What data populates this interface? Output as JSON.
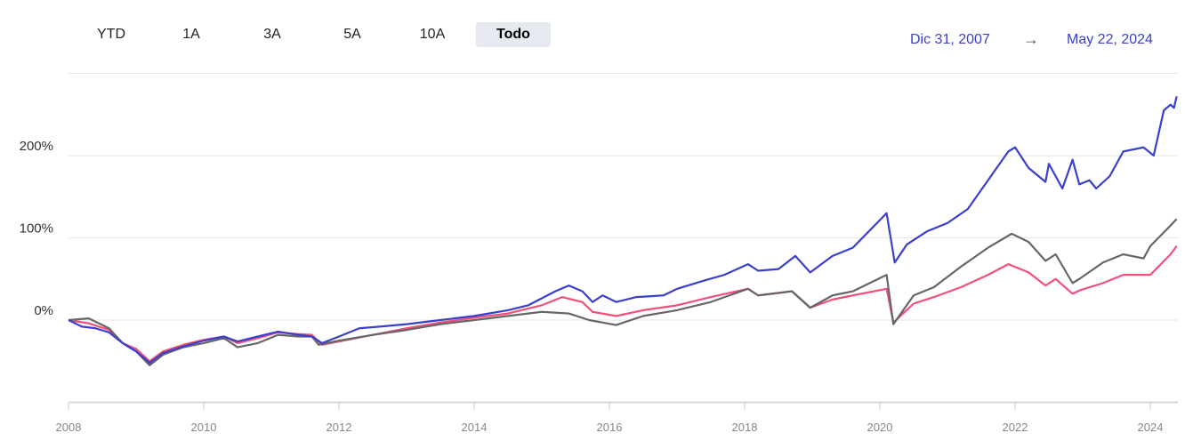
{
  "range_buttons": [
    {
      "label": "YTD",
      "active": false
    },
    {
      "label": "1A",
      "active": false
    },
    {
      "label": "3A",
      "active": false
    },
    {
      "label": "5A",
      "active": false
    },
    {
      "label": "10A",
      "active": false
    },
    {
      "label": "Todo",
      "active": true
    }
  ],
  "date_range": {
    "start": "Dic 31, 2007",
    "arrow": "→",
    "end": "May 22, 2024"
  },
  "chart_data": {
    "type": "line",
    "xlim": [
      2008,
      2024.39
    ],
    "ylim": [
      -100,
      300
    ],
    "grid": true,
    "y_ticks": [
      {
        "value": 0,
        "label": "0%"
      },
      {
        "value": 100,
        "label": "100%"
      },
      {
        "value": 200,
        "label": "200%"
      }
    ],
    "y_gridlines": [
      -100,
      0,
      100,
      200,
      300
    ],
    "x_ticks": [
      {
        "value": 2008,
        "label": "2008"
      },
      {
        "value": 2010,
        "label": "2010"
      },
      {
        "value": 2012,
        "label": "2012"
      },
      {
        "value": 2014,
        "label": "2014"
      },
      {
        "value": 2016,
        "label": "2016"
      },
      {
        "value": 2018,
        "label": "2018"
      },
      {
        "value": 2020,
        "label": "2020"
      },
      {
        "value": 2022,
        "label": "2022"
      },
      {
        "value": 2024,
        "label": "2024"
      }
    ],
    "series": [
      {
        "color": "#f0507a",
        "points": [
          [
            2008,
            0
          ],
          [
            2008.3,
            -4
          ],
          [
            2008.6,
            -12
          ],
          [
            2008.8,
            -28
          ],
          [
            2009,
            -35
          ],
          [
            2009.2,
            -50
          ],
          [
            2009.4,
            -38
          ],
          [
            2009.7,
            -30
          ],
          [
            2010,
            -24
          ],
          [
            2010.3,
            -20
          ],
          [
            2010.5,
            -28
          ],
          [
            2010.8,
            -22
          ],
          [
            2011.1,
            -15
          ],
          [
            2011.4,
            -17
          ],
          [
            2011.6,
            -18
          ],
          [
            2011.75,
            -30
          ],
          [
            2012,
            -26
          ],
          [
            2012.5,
            -18
          ],
          [
            2013,
            -10
          ],
          [
            2013.5,
            -3
          ],
          [
            2014,
            3
          ],
          [
            2014.5,
            8
          ],
          [
            2015,
            18
          ],
          [
            2015.3,
            28
          ],
          [
            2015.6,
            22
          ],
          [
            2015.75,
            10
          ],
          [
            2016.1,
            5
          ],
          [
            2016.5,
            12
          ],
          [
            2017,
            18
          ],
          [
            2017.5,
            28
          ],
          [
            2018.05,
            38
          ],
          [
            2018.2,
            30
          ],
          [
            2018.7,
            35
          ],
          [
            2018.97,
            15
          ],
          [
            2019.3,
            25
          ],
          [
            2019.6,
            30
          ],
          [
            2020.1,
            38
          ],
          [
            2020.2,
            -3
          ],
          [
            2020.5,
            20
          ],
          [
            2020.8,
            28
          ],
          [
            2021.2,
            40
          ],
          [
            2021.6,
            55
          ],
          [
            2021.9,
            68
          ],
          [
            2022.2,
            58
          ],
          [
            2022.45,
            42
          ],
          [
            2022.6,
            50
          ],
          [
            2022.85,
            32
          ],
          [
            2022.95,
            36
          ],
          [
            2023.3,
            45
          ],
          [
            2023.6,
            55
          ],
          [
            2023.9,
            55
          ],
          [
            2024.0,
            55
          ],
          [
            2024.3,
            80
          ],
          [
            2024.39,
            90
          ]
        ]
      },
      {
        "color": "#666666",
        "points": [
          [
            2008,
            0
          ],
          [
            2008.3,
            2
          ],
          [
            2008.6,
            -10
          ],
          [
            2008.8,
            -28
          ],
          [
            2009,
            -38
          ],
          [
            2009.2,
            -55
          ],
          [
            2009.4,
            -42
          ],
          [
            2009.7,
            -33
          ],
          [
            2010,
            -28
          ],
          [
            2010.3,
            -22
          ],
          [
            2010.5,
            -33
          ],
          [
            2010.8,
            -28
          ],
          [
            2011.1,
            -18
          ],
          [
            2011.4,
            -20
          ],
          [
            2011.6,
            -20
          ],
          [
            2011.7,
            -30
          ],
          [
            2012,
            -25
          ],
          [
            2012.5,
            -18
          ],
          [
            2013,
            -12
          ],
          [
            2013.5,
            -5
          ],
          [
            2014,
            0
          ],
          [
            2014.5,
            5
          ],
          [
            2015,
            10
          ],
          [
            2015.4,
            8
          ],
          [
            2015.7,
            0
          ],
          [
            2016.1,
            -6
          ],
          [
            2016.5,
            5
          ],
          [
            2017,
            12
          ],
          [
            2017.5,
            22
          ],
          [
            2018.05,
            38
          ],
          [
            2018.2,
            30
          ],
          [
            2018.7,
            35
          ],
          [
            2018.97,
            15
          ],
          [
            2019.3,
            30
          ],
          [
            2019.6,
            35
          ],
          [
            2020.1,
            55
          ],
          [
            2020.2,
            -5
          ],
          [
            2020.5,
            30
          ],
          [
            2020.8,
            40
          ],
          [
            2021.2,
            65
          ],
          [
            2021.6,
            88
          ],
          [
            2021.95,
            105
          ],
          [
            2022.2,
            95
          ],
          [
            2022.45,
            72
          ],
          [
            2022.6,
            80
          ],
          [
            2022.85,
            45
          ],
          [
            2022.95,
            50
          ],
          [
            2023.3,
            70
          ],
          [
            2023.6,
            80
          ],
          [
            2023.9,
            75
          ],
          [
            2024.0,
            90
          ],
          [
            2024.3,
            115
          ],
          [
            2024.39,
            123
          ]
        ]
      },
      {
        "color": "#3a3fcc",
        "points": [
          [
            2008,
            0
          ],
          [
            2008.2,
            -8
          ],
          [
            2008.4,
            -10
          ],
          [
            2008.6,
            -15
          ],
          [
            2008.8,
            -28
          ],
          [
            2009.0,
            -38
          ],
          [
            2009.2,
            -52
          ],
          [
            2009.4,
            -40
          ],
          [
            2009.7,
            -32
          ],
          [
            2010,
            -25
          ],
          [
            2010.3,
            -20
          ],
          [
            2010.5,
            -26
          ],
          [
            2010.8,
            -20
          ],
          [
            2011.1,
            -14
          ],
          [
            2011.4,
            -18
          ],
          [
            2011.6,
            -20
          ],
          [
            2011.75,
            -28
          ],
          [
            2012,
            -20
          ],
          [
            2012.3,
            -10
          ],
          [
            2012.6,
            -8
          ],
          [
            2013,
            -5
          ],
          [
            2013.5,
            0
          ],
          [
            2014,
            5
          ],
          [
            2014.5,
            12
          ],
          [
            2014.8,
            18
          ],
          [
            2015.2,
            35
          ],
          [
            2015.4,
            42
          ],
          [
            2015.6,
            35
          ],
          [
            2015.75,
            22
          ],
          [
            2015.9,
            30
          ],
          [
            2016.1,
            22
          ],
          [
            2016.4,
            28
          ],
          [
            2016.8,
            30
          ],
          [
            2017,
            38
          ],
          [
            2017.4,
            48
          ],
          [
            2017.7,
            55
          ],
          [
            2018.05,
            68
          ],
          [
            2018.2,
            60
          ],
          [
            2018.5,
            62
          ],
          [
            2018.75,
            78
          ],
          [
            2018.97,
            58
          ],
          [
            2019.3,
            78
          ],
          [
            2019.6,
            88
          ],
          [
            2020.1,
            130
          ],
          [
            2020.22,
            70
          ],
          [
            2020.4,
            92
          ],
          [
            2020.7,
            108
          ],
          [
            2021.0,
            118
          ],
          [
            2021.3,
            135
          ],
          [
            2021.6,
            170
          ],
          [
            2021.9,
            205
          ],
          [
            2022.0,
            210
          ],
          [
            2022.2,
            185
          ],
          [
            2022.45,
            168
          ],
          [
            2022.5,
            190
          ],
          [
            2022.7,
            160
          ],
          [
            2022.85,
            195
          ],
          [
            2022.95,
            165
          ],
          [
            2023.1,
            170
          ],
          [
            2023.2,
            160
          ],
          [
            2023.4,
            175
          ],
          [
            2023.6,
            205
          ],
          [
            2023.9,
            210
          ],
          [
            2024.05,
            200
          ],
          [
            2024.2,
            255
          ],
          [
            2024.3,
            262
          ],
          [
            2024.35,
            258
          ],
          [
            2024.39,
            272
          ]
        ]
      }
    ]
  }
}
